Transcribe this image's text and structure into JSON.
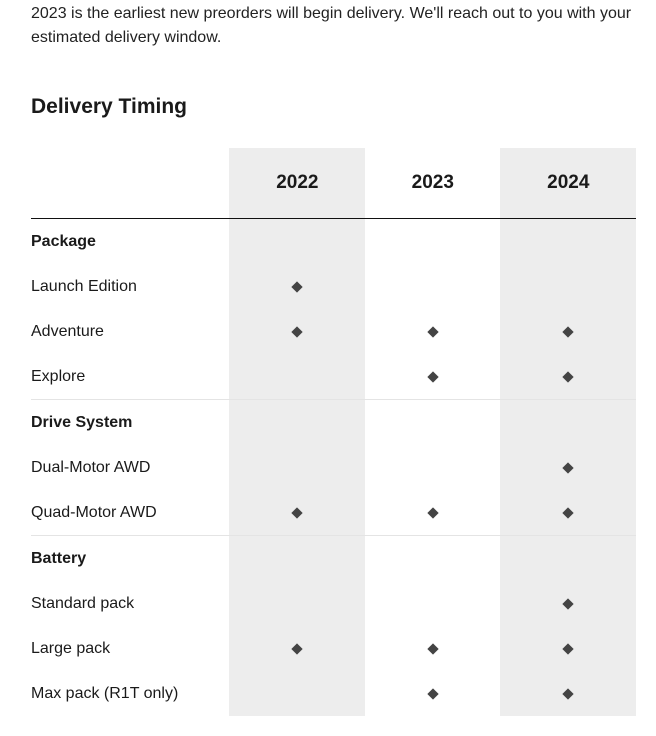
{
  "intro": "2023 is the earliest new preorders will begin delivery. We'll reach out to you with your estimated delivery window.",
  "title": "Delivery Timing",
  "years": [
    "2022",
    "2023",
    "2024"
  ],
  "sections": [
    {
      "name": "Package",
      "rows": [
        {
          "label": "Launch Edition",
          "avail": [
            true,
            false,
            false
          ]
        },
        {
          "label": "Adventure",
          "avail": [
            true,
            true,
            true
          ]
        },
        {
          "label": "Explore",
          "avail": [
            false,
            true,
            true
          ]
        }
      ]
    },
    {
      "name": "Drive System",
      "rows": [
        {
          "label": "Dual-Motor AWD",
          "avail": [
            false,
            false,
            true
          ]
        },
        {
          "label": "Quad-Motor AWD",
          "avail": [
            true,
            true,
            true
          ]
        }
      ]
    },
    {
      "name": "Battery",
      "rows": [
        {
          "label": "Standard pack",
          "avail": [
            false,
            false,
            true
          ]
        },
        {
          "label": "Large pack",
          "avail": [
            true,
            true,
            true
          ]
        },
        {
          "label": "Max pack (R1T only)",
          "avail": [
            false,
            true,
            true
          ]
        }
      ]
    }
  ],
  "colors": {
    "shade": "#ededed",
    "diamond": "#444444"
  }
}
